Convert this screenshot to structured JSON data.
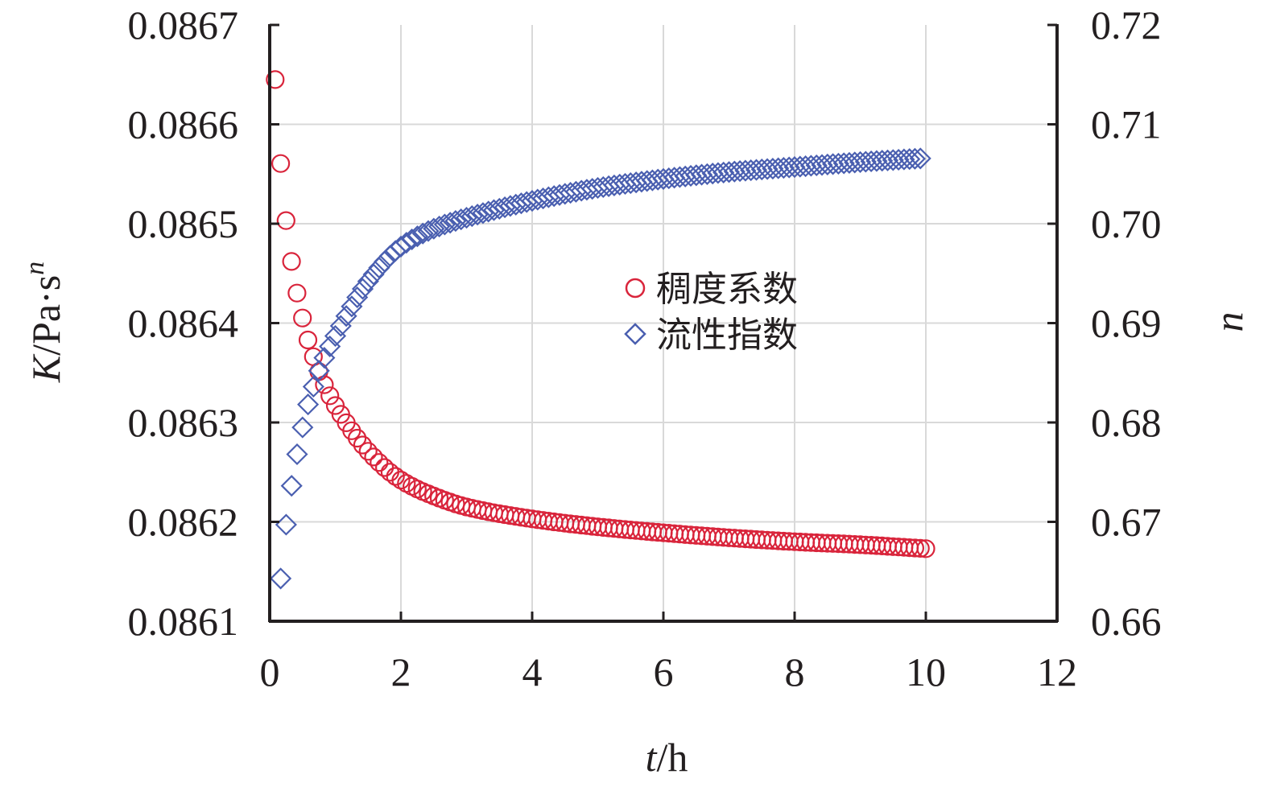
{
  "chart_data": {
    "type": "scatter",
    "title": "",
    "xlabel": {
      "main": "t",
      "unit": "/h"
    },
    "ylabel_left": {
      "main": "K",
      "unit": "/Pa·s",
      "sup": "n"
    },
    "ylabel_right": "n",
    "xlim": [
      0,
      12
    ],
    "ylim_left": [
      0.0861,
      0.0867
    ],
    "ylim_right": [
      0.66,
      0.72
    ],
    "x_ticks": [
      "0",
      "2",
      "4",
      "6",
      "8",
      "10",
      "12"
    ],
    "y_left_ticks": [
      "0.0861",
      "0.0862",
      "0.0863",
      "0.0864",
      "0.0865",
      "0.0866",
      "0.0867"
    ],
    "y_right_ticks": [
      "0.66",
      "0.67",
      "0.68",
      "0.69",
      "0.70",
      "0.71",
      "0.72"
    ],
    "grid": true,
    "legend_position": "center",
    "colors": {
      "k_marker": "#d9243b",
      "n_marker": "#4a5fb0",
      "axis": "#231f20",
      "grid": "#d9d9d9"
    },
    "series": [
      {
        "name": "稠度系数",
        "axis": "left",
        "marker": "circle",
        "x": [
          0.083,
          0.167,
          0.25,
          0.333,
          0.417,
          0.5,
          0.583,
          0.667,
          0.75,
          0.833,
          1.0,
          1.5,
          2.0,
          2.5,
          3.0,
          4.0,
          5.0,
          6.0,
          7.0,
          8.0,
          9.0,
          10.0
        ],
        "values": [
          0.086645,
          0.08656,
          0.086503,
          0.086462,
          0.08643,
          0.086405,
          0.086383,
          0.086366,
          0.086351,
          0.086338,
          0.086317,
          0.086271,
          0.086242,
          0.086226,
          0.086215,
          0.086203,
          0.086195,
          0.086189,
          0.086184,
          0.08618,
          0.086177,
          0.086173
        ]
      },
      {
        "name": "流性指数",
        "axis": "right",
        "marker": "diamond",
        "x": [
          0.167,
          0.25,
          0.333,
          0.417,
          0.5,
          0.583,
          0.667,
          0.75,
          0.833,
          1.0,
          1.5,
          2.0,
          2.5,
          3.0,
          4.0,
          5.0,
          6.0,
          7.0,
          8.0,
          9.0,
          10.0
        ],
        "values": [
          0.6643,
          0.6697,
          0.6736,
          0.6768,
          0.6795,
          0.6818,
          0.6836,
          0.6852,
          0.6865,
          0.6887,
          0.6942,
          0.6977,
          0.6995,
          0.7006,
          0.7023,
          0.7036,
          0.7045,
          0.7052,
          0.7057,
          0.7062,
          0.7066
        ]
      }
    ]
  }
}
